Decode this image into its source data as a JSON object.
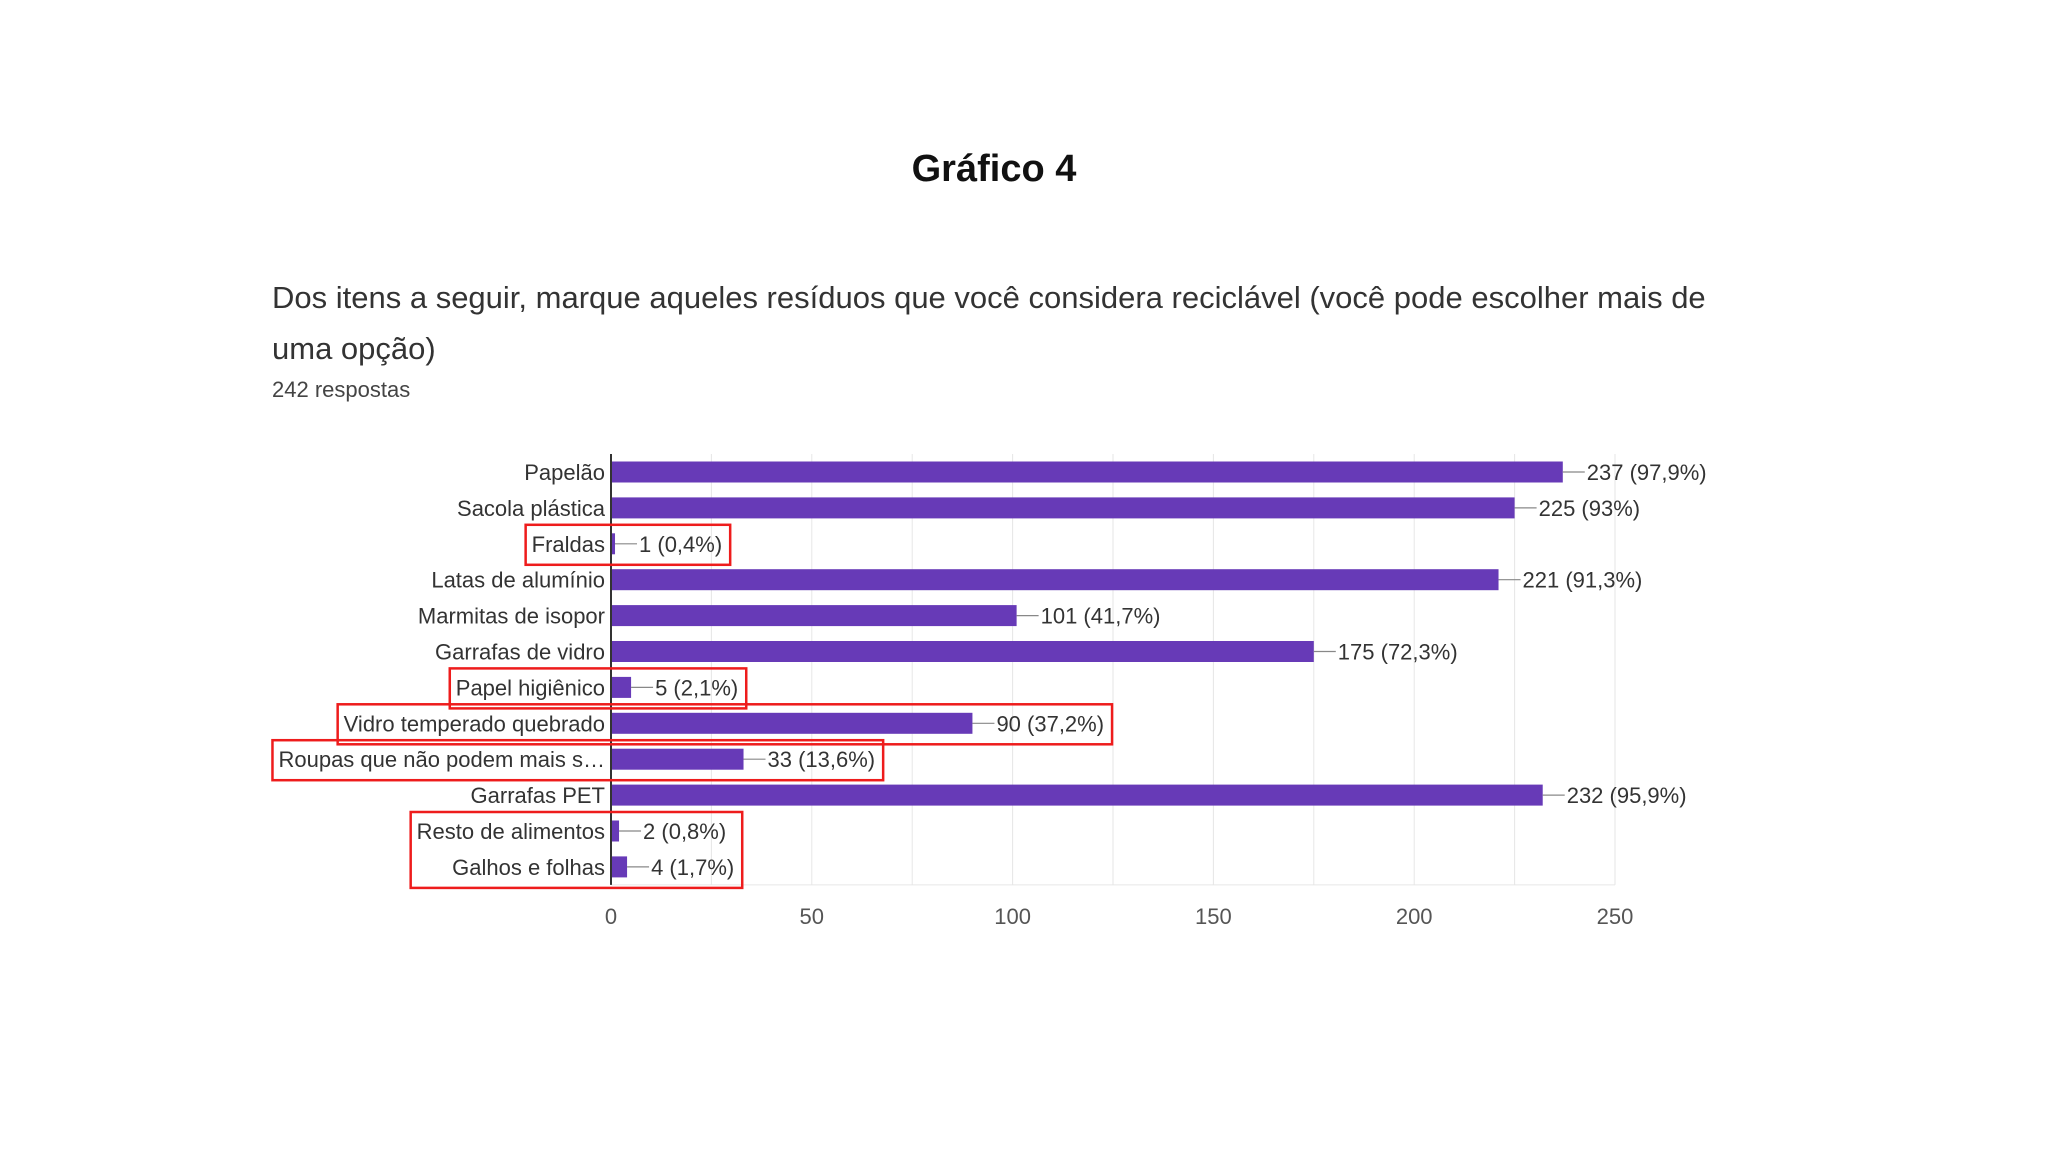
{
  "figure_title": "Gráfico 4",
  "question": "Dos itens a seguir, marque aqueles resíduos que você considera reciclável (você pode escolher mais de uma opção)",
  "responses": "242 respostas",
  "colors": {
    "bar": "#673ab7",
    "highlight": "#ee1c1c",
    "grid": "#e6e6e6",
    "axis": "#333333",
    "label": "#333333"
  },
  "chart_data": {
    "type": "bar",
    "orientation": "horizontal",
    "categories": [
      "Papelão",
      "Sacola plástica",
      "Fraldas",
      "Latas de alumínio",
      "Marmitas de isopor",
      "Garrafas de vidro",
      "Papel higiênico",
      "Vidro temperado quebrado",
      "Roupas que não podem mais s…",
      "Garrafas PET",
      "Resto de alimentos",
      "Galhos e folhas"
    ],
    "values": [
      237,
      225,
      1,
      221,
      101,
      175,
      5,
      90,
      33,
      232,
      2,
      4
    ],
    "data_labels": [
      "237 (97,9%)",
      "225 (93%)",
      "1 (0,4%)",
      "221 (91,3%)",
      "101 (41,7%)",
      "175 (72,3%)",
      "5 (2,1%)",
      "90 (37,2%)",
      "33 (13,6%)",
      "232 (95,9%)",
      "2 (0,8%)",
      "4 (1,7%)"
    ],
    "xlim": [
      0,
      250
    ],
    "xticks": [
      0,
      50,
      100,
      150,
      200,
      250
    ],
    "highlight_groups": [
      [
        2
      ],
      [
        6
      ],
      [
        7
      ],
      [
        8
      ],
      [
        10,
        11
      ]
    ],
    "grid": true
  }
}
